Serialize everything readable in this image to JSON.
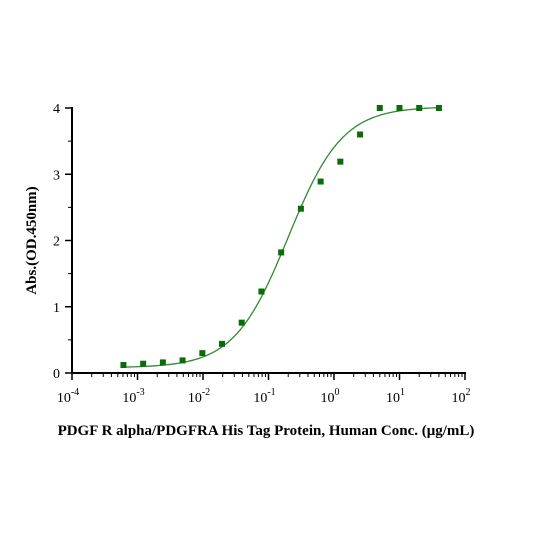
{
  "chart_data": {
    "type": "scatter",
    "title": "",
    "xlabel": "PDGF R alpha/PDGFRA His Tag Protein, Human Conc. (μg/mL)",
    "ylabel": "Abs.(OD.450nm)",
    "x_scale": "log",
    "xlim": [
      0.0001,
      100
    ],
    "ylim": [
      0,
      4
    ],
    "x_ticks": [
      {
        "base": "10",
        "exp": "-4",
        "value": 0.0001
      },
      {
        "base": "10",
        "exp": "-3",
        "value": 0.001
      },
      {
        "base": "10",
        "exp": "-2",
        "value": 0.01
      },
      {
        "base": "10",
        "exp": "-1",
        "value": 0.1
      },
      {
        "base": "10",
        "exp": "0",
        "value": 1
      },
      {
        "base": "10",
        "exp": "1",
        "value": 10
      },
      {
        "base": "10",
        "exp": "2",
        "value": 100
      }
    ],
    "y_ticks": [
      "0",
      "1",
      "2",
      "3",
      "4"
    ],
    "grid": false,
    "series": [
      {
        "marker": "square",
        "color": "#0a6b0a",
        "x": [
          0.00061,
          0.00122,
          0.00244,
          0.00488,
          0.00977,
          0.0195,
          0.039,
          0.078,
          0.156,
          0.3125,
          0.625,
          1.25,
          2.5,
          5,
          10,
          20,
          40
        ],
        "y": [
          0.12,
          0.14,
          0.16,
          0.19,
          0.3,
          0.44,
          0.76,
          1.23,
          1.82,
          2.48,
          2.89,
          3.19,
          3.6,
          4.0,
          4.0,
          4.0,
          4.0
        ]
      }
    ],
    "fit_curve": {
      "model": "4PL",
      "bottom": 0.08,
      "top": 4.02,
      "ec50": 0.2,
      "hill": 1.05,
      "color": "#2e8b2e"
    }
  }
}
